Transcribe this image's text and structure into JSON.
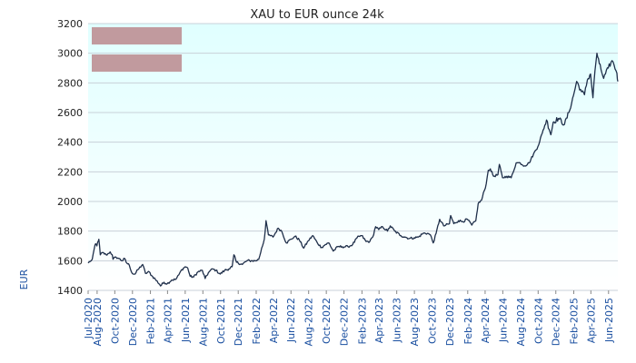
{
  "chart_data": {
    "type": "line",
    "title": "XAU to EUR ounce 24k",
    "ylabel": "EUR",
    "xlabel": "",
    "ylim": [
      1400,
      3200
    ],
    "yticks": [
      "1400",
      "1600",
      "1800",
      "2000",
      "2200",
      "2400",
      "2600",
      "2800",
      "3000",
      "3200"
    ],
    "xticks": [
      "Jul-2020",
      "Aug-2020",
      "Oct-2020",
      "Dec-2020",
      "Feb-2021",
      "Apr-2021",
      "Jun-2021",
      "Aug-2021",
      "Oct-2021",
      "Dec-2021",
      "Feb-2022",
      "Apr-2022",
      "Jun-2022",
      "Aug-2022",
      "Oct-2022",
      "Dec-2022",
      "Feb-2023",
      "Apr-2023",
      "Jun-2023",
      "Aug-2023",
      "Oct-2023",
      "Dec-2023",
      "Feb-2024",
      "Apr-2024",
      "Jun-2024",
      "Aug-2024",
      "Oct-2024",
      "Dec-2024",
      "Feb-2025",
      "Apr-2025",
      "Jun-2025"
    ],
    "grid": true,
    "colors": {
      "line": "#1f2f4a",
      "plot_top": "#e0ffff",
      "plot_bottom": "#ffffff",
      "legend_swatch": "#c19a9e",
      "grid": "#c8d0d8"
    },
    "legend": {
      "placement": "top-left",
      "entries": [
        "",
        ""
      ]
    },
    "series": [
      {
        "values": [
          [
            "2020-07-01",
            1585
          ],
          [
            "2020-07-08",
            1595
          ],
          [
            "2020-07-15",
            1610
          ],
          [
            "2020-07-22",
            1680
          ],
          [
            "2020-07-27",
            1715
          ],
          [
            "2020-07-31",
            1700
          ],
          [
            "2020-08-04",
            1730
          ],
          [
            "2020-08-07",
            1745
          ],
          [
            "2020-08-12",
            1640
          ],
          [
            "2020-08-20",
            1655
          ],
          [
            "2020-09-01",
            1640
          ],
          [
            "2020-09-10",
            1650
          ],
          [
            "2020-09-15",
            1660
          ],
          [
            "2020-09-22",
            1640
          ],
          [
            "2020-09-25",
            1610
          ],
          [
            "2020-10-05",
            1625
          ],
          [
            "2020-10-15",
            1615
          ],
          [
            "2020-10-27",
            1600
          ],
          [
            "2020-11-04",
            1615
          ],
          [
            "2020-11-09",
            1590
          ],
          [
            "2020-11-20",
            1570
          ],
          [
            "2020-11-30",
            1515
          ],
          [
            "2020-12-10",
            1510
          ],
          [
            "2020-12-20",
            1540
          ],
          [
            "2021-01-05",
            1575
          ],
          [
            "2021-01-15",
            1515
          ],
          [
            "2021-01-28",
            1525
          ],
          [
            "2021-02-05",
            1500
          ],
          [
            "2021-02-18",
            1475
          ],
          [
            "2021-03-05",
            1440
          ],
          [
            "2021-03-08",
            1430
          ],
          [
            "2021-03-20",
            1455
          ],
          [
            "2021-03-31",
            1445
          ],
          [
            "2021-04-15",
            1470
          ],
          [
            "2021-04-30",
            1475
          ],
          [
            "2021-05-10",
            1505
          ],
          [
            "2021-05-20",
            1540
          ],
          [
            "2021-06-01",
            1560
          ],
          [
            "2021-06-10",
            1550
          ],
          [
            "2021-06-18",
            1495
          ],
          [
            "2021-06-30",
            1490
          ],
          [
            "2021-07-15",
            1525
          ],
          [
            "2021-07-30",
            1535
          ],
          [
            "2021-08-09",
            1480
          ],
          [
            "2021-08-20",
            1520
          ],
          [
            "2021-09-03",
            1545
          ],
          [
            "2021-09-15",
            1535
          ],
          [
            "2021-09-30",
            1510
          ],
          [
            "2021-10-15",
            1535
          ],
          [
            "2021-10-30",
            1545
          ],
          [
            "2021-11-10",
            1560
          ],
          [
            "2021-11-16",
            1640
          ],
          [
            "2021-11-25",
            1590
          ],
          [
            "2021-12-15",
            1575
          ],
          [
            "2021-12-31",
            1600
          ],
          [
            "2022-01-15",
            1600
          ],
          [
            "2022-01-31",
            1600
          ],
          [
            "2022-02-10",
            1610
          ],
          [
            "2022-02-20",
            1685
          ],
          [
            "2022-03-01",
            1745
          ],
          [
            "2022-03-07",
            1870
          ],
          [
            "2022-03-15",
            1775
          ],
          [
            "2022-03-31",
            1760
          ],
          [
            "2022-04-18",
            1820
          ],
          [
            "2022-04-30",
            1800
          ],
          [
            "2022-05-16",
            1720
          ],
          [
            "2022-06-01",
            1745
          ],
          [
            "2022-06-15",
            1765
          ],
          [
            "2022-06-30",
            1740
          ],
          [
            "2022-07-15",
            1685
          ],
          [
            "2022-07-31",
            1735
          ],
          [
            "2022-08-15",
            1770
          ],
          [
            "2022-08-31",
            1720
          ],
          [
            "2022-09-15",
            1690
          ],
          [
            "2022-09-28",
            1710
          ],
          [
            "2022-10-10",
            1720
          ],
          [
            "2022-10-25",
            1665
          ],
          [
            "2022-11-10",
            1695
          ],
          [
            "2022-11-25",
            1695
          ],
          [
            "2022-12-15",
            1695
          ],
          [
            "2022-12-31",
            1710
          ],
          [
            "2023-01-15",
            1755
          ],
          [
            "2023-01-31",
            1770
          ],
          [
            "2023-02-15",
            1730
          ],
          [
            "2023-02-28",
            1730
          ],
          [
            "2023-03-10",
            1760
          ],
          [
            "2023-03-20",
            1830
          ],
          [
            "2023-03-31",
            1810
          ],
          [
            "2023-04-13",
            1830
          ],
          [
            "2023-04-30",
            1800
          ],
          [
            "2023-05-10",
            1835
          ],
          [
            "2023-05-25",
            1800
          ],
          [
            "2023-06-15",
            1770
          ],
          [
            "2023-06-30",
            1760
          ],
          [
            "2023-07-15",
            1750
          ],
          [
            "2023-07-31",
            1755
          ],
          [
            "2023-08-15",
            1760
          ],
          [
            "2023-08-31",
            1785
          ],
          [
            "2023-09-15",
            1785
          ],
          [
            "2023-09-25",
            1775
          ],
          [
            "2023-10-05",
            1720
          ],
          [
            "2023-10-15",
            1785
          ],
          [
            "2023-10-27",
            1880
          ],
          [
            "2023-11-10",
            1835
          ],
          [
            "2023-11-30",
            1850
          ],
          [
            "2023-12-04",
            1905
          ],
          [
            "2023-12-15",
            1850
          ],
          [
            "2023-12-31",
            1870
          ],
          [
            "2024-01-15",
            1865
          ],
          [
            "2024-01-31",
            1880
          ],
          [
            "2024-02-15",
            1840
          ],
          [
            "2024-02-29",
            1870
          ],
          [
            "2024-03-08",
            1985
          ],
          [
            "2024-03-20",
            2010
          ],
          [
            "2024-04-05",
            2120
          ],
          [
            "2024-04-12",
            2210
          ],
          [
            "2024-04-19",
            2220
          ],
          [
            "2024-04-30",
            2170
          ],
          [
            "2024-05-15",
            2180
          ],
          [
            "2024-05-20",
            2250
          ],
          [
            "2024-05-31",
            2160
          ],
          [
            "2024-06-15",
            2170
          ],
          [
            "2024-06-30",
            2160
          ],
          [
            "2024-07-17",
            2260
          ],
          [
            "2024-07-31",
            2260
          ],
          [
            "2024-08-15",
            2240
          ],
          [
            "2024-08-31",
            2260
          ],
          [
            "2024-09-15",
            2320
          ],
          [
            "2024-09-30",
            2370
          ],
          [
            "2024-10-15",
            2460
          ],
          [
            "2024-10-30",
            2550
          ],
          [
            "2024-11-14",
            2450
          ],
          [
            "2024-11-22",
            2535
          ],
          [
            "2024-12-10",
            2560
          ],
          [
            "2024-12-31",
            2520
          ],
          [
            "2025-01-15",
            2600
          ],
          [
            "2025-01-31",
            2715
          ],
          [
            "2025-02-11",
            2810
          ],
          [
            "2025-02-28",
            2740
          ],
          [
            "2025-03-10",
            2720
          ],
          [
            "2025-03-20",
            2820
          ],
          [
            "2025-03-31",
            2860
          ],
          [
            "2025-04-08",
            2700
          ],
          [
            "2025-04-15",
            2880
          ],
          [
            "2025-04-22",
            3000
          ],
          [
            "2025-04-30",
            2930
          ],
          [
            "2025-05-15",
            2830
          ],
          [
            "2025-05-31",
            2900
          ],
          [
            "2025-06-13",
            2950
          ],
          [
            "2025-06-20",
            2920
          ],
          [
            "2025-06-30",
            2865
          ],
          [
            "2025-07-03",
            2810
          ]
        ]
      }
    ]
  }
}
